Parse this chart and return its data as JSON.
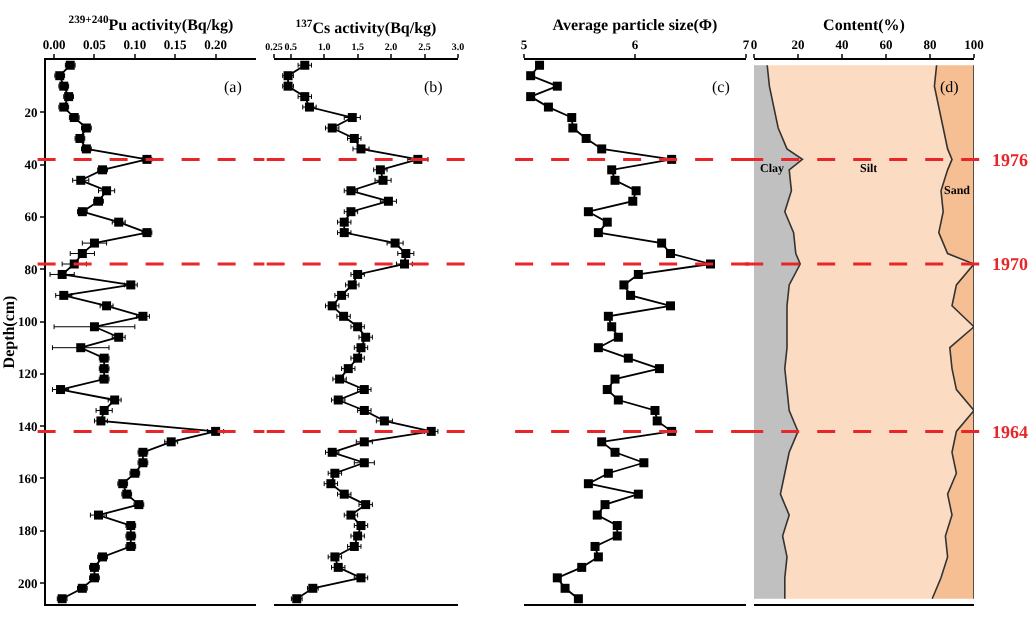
{
  "chart_data": [
    {
      "type": "line",
      "orientation": "horizontal",
      "xlabel": "$^{239+240}$Pu activity(Bq/kg)",
      "ylabel": "Depth(cm)",
      "annotations": [
        "(a)"
      ],
      "marker": "square",
      "line_style": "solid",
      "x": [
        2,
        6,
        10,
        14,
        18,
        22,
        26,
        30,
        34,
        38,
        42,
        46,
        50,
        54,
        58,
        62,
        66,
        70,
        74,
        78,
        82,
        86,
        90,
        94,
        98,
        102,
        106,
        110,
        114,
        118,
        122,
        126,
        130,
        134,
        138,
        142,
        146,
        150,
        154,
        158,
        162,
        166,
        170,
        174,
        178,
        182,
        186,
        190,
        194,
        198,
        202,
        206
      ],
      "series": [
        {
          "color": "#000000",
          "values": [
            0.02,
            0.007,
            0.012,
            0.018,
            0.012,
            0.025,
            0.04,
            0.032,
            0.04,
            0.115,
            0.06,
            0.033,
            0.065,
            0.055,
            0.035,
            0.08,
            0.115,
            0.05,
            0.035,
            0.025,
            0.01,
            0.095,
            0.012,
            0.065,
            0.11,
            0.05,
            0.08,
            0.033,
            0.062,
            0.062,
            0.062,
            0.008,
            0.075,
            0.062,
            0.058,
            0.2,
            0.145,
            0.11,
            0.11,
            0.1,
            0.085,
            0.09,
            0.105,
            0.055,
            0.095,
            0.095,
            0.095,
            0.06,
            0.05,
            0.05,
            0.035,
            0.01
          ],
          "errors": [
            0.006,
            0.006,
            0.006,
            0.006,
            0.006,
            0.006,
            0.006,
            0.006,
            0.006,
            0.006,
            0.006,
            0.01,
            0.01,
            0.006,
            0.006,
            0.008,
            0.006,
            0.015,
            0.015,
            0.015,
            0.015,
            0.008,
            0.01,
            0.008,
            0.008,
            0.05,
            0.008,
            0.035,
            0.006,
            0.006,
            0.006,
            0.01,
            0.008,
            0.01,
            0.008,
            0.01,
            0.008,
            0.006,
            0.006,
            0.006,
            0.006,
            0.006,
            0.006,
            0.01,
            0.006,
            0.006,
            0.006,
            0.006,
            0.006,
            0.006,
            0.006,
            0.006
          ]
        }
      ],
      "xlim": [
        -0.01,
        0.25
      ],
      "xticks": [
        {
          "value": 0,
          "label": "0.00"
        },
        0.05,
        {
          "value": 0.1,
          "label": "0.10"
        },
        0.15,
        {
          "value": 0.2,
          "label": "0.20"
        }
      ],
      "ylim": [
        208,
        0
      ],
      "yticks": [
        20,
        40,
        60,
        80,
        100,
        120,
        140,
        160,
        180,
        200
      ],
      "ref_lines": [
        {
          "axis": "y",
          "value": 38,
          "color": "#e8262a",
          "line_style": "dashed"
        },
        {
          "axis": "y",
          "value": 78,
          "color": "#e8262a",
          "line_style": "dashed"
        },
        {
          "axis": "y",
          "value": 142,
          "color": "#e8262a",
          "line_style": "dashed"
        }
      ]
    },
    {
      "type": "line",
      "orientation": "horizontal",
      "xlabel": "$^{137}$Cs activity(Bq/kg)",
      "annotations": [
        "(b)"
      ],
      "marker": "square",
      "line_style": "solid",
      "tick_labels": "x",
      "x": [
        2,
        6,
        10,
        14,
        18,
        22,
        26,
        30,
        34,
        38,
        42,
        46,
        50,
        54,
        58,
        62,
        66,
        70,
        74,
        78,
        82,
        86,
        90,
        94,
        98,
        102,
        106,
        110,
        114,
        118,
        122,
        126,
        130,
        134,
        138,
        142,
        146,
        150,
        154,
        158,
        162,
        166,
        170,
        174,
        178,
        182,
        186,
        190,
        194,
        198,
        202,
        206
      ],
      "series": [
        {
          "color": "#000000",
          "values": [
            0.71,
            0.46,
            0.46,
            0.71,
            0.78,
            1.42,
            1.12,
            1.45,
            1.55,
            2.4,
            1.84,
            1.88,
            1.4,
            1.96,
            1.4,
            1.3,
            1.3,
            2.06,
            2.22,
            2.2,
            1.5,
            1.42,
            1.26,
            1.12,
            1.29,
            1.5,
            1.62,
            1.55,
            1.5,
            1.36,
            1.23,
            1.6,
            1.21,
            1.6,
            1.9,
            2.6,
            1.6,
            1.12,
            1.6,
            1.16,
            1.1,
            1.3,
            1.62,
            1.4,
            1.55,
            1.5,
            1.45,
            1.16,
            1.21,
            1.55,
            0.83,
            0.59
          ],
          "errors": [
            0.1,
            0.08,
            0.08,
            0.1,
            0.1,
            0.12,
            0.1,
            0.1,
            0.12,
            0.15,
            0.1,
            0.12,
            0.1,
            0.12,
            0.1,
            0.1,
            0.1,
            0.12,
            0.12,
            0.12,
            0.1,
            0.1,
            0.1,
            0.1,
            0.1,
            0.1,
            0.1,
            0.1,
            0.1,
            0.1,
            0.1,
            0.1,
            0.1,
            0.1,
            0.12,
            0.1,
            0.12,
            0.1,
            0.15,
            0.1,
            0.1,
            0.1,
            0.1,
            0.1,
            0.1,
            0.1,
            0.1,
            0.1,
            0.1,
            0.1,
            0.08,
            0.08
          ]
        }
      ],
      "xlim": [
        0.25,
        3.0
      ],
      "xticks": [
        0.25,
        0.5,
        {
          "value": 1,
          "label": "1.0"
        },
        1.5,
        {
          "value": 2,
          "label": "2.0"
        },
        2.5,
        {
          "value": 3,
          "label": "3.0"
        }
      ],
      "ylim": [
        208,
        0
      ],
      "ref_lines": [
        {
          "axis": "y",
          "value": 38,
          "color": "#e8262a",
          "line_style": "dashed"
        },
        {
          "axis": "y",
          "value": 78,
          "color": "#e8262a",
          "line_style": "dashed"
        },
        {
          "axis": "y",
          "value": 142,
          "color": "#e8262a",
          "line_style": "dashed"
        }
      ]
    },
    {
      "type": "line",
      "orientation": "horizontal",
      "xlabel": "Average particle size(Φ)",
      "annotations": [
        "(c)"
      ],
      "marker": "square",
      "line_style": "solid",
      "tick_labels": "x",
      "x": [
        2,
        6,
        10,
        14,
        18,
        22,
        26,
        30,
        34,
        38,
        42,
        46,
        50,
        54,
        58,
        62,
        66,
        70,
        74,
        78,
        82,
        86,
        90,
        94,
        98,
        102,
        106,
        110,
        114,
        118,
        122,
        126,
        130,
        134,
        138,
        142,
        146,
        150,
        154,
        158,
        162,
        166,
        170,
        174,
        178,
        182,
        186,
        190,
        194,
        198,
        202,
        206
      ],
      "series": [
        {
          "color": "#000000",
          "values": [
            5.14,
            5.06,
            5.3,
            5.06,
            5.22,
            5.43,
            5.44,
            5.56,
            5.7,
            6.33,
            5.79,
            5.82,
            6.01,
            5.98,
            5.58,
            5.75,
            5.67,
            6.24,
            6.32,
            6.68,
            6.03,
            5.9,
            5.96,
            6.32,
            5.76,
            5.79,
            5.85,
            5.67,
            5.94,
            6.22,
            5.82,
            5.75,
            5.85,
            6.18,
            6.2,
            6.33,
            5.7,
            5.82,
            6.08,
            5.76,
            5.58,
            6.03,
            5.73,
            5.66,
            5.84,
            5.84,
            5.64,
            5.67,
            5.52,
            5.3,
            5.37,
            5.49
          ]
        }
      ],
      "xlim": [
        5,
        7
      ],
      "xticks": [
        5,
        6,
        7
      ],
      "ylim": [
        208,
        0
      ],
      "ref_lines": [
        {
          "axis": "y",
          "value": 38,
          "color": "#e8262a",
          "line_style": "dashed"
        },
        {
          "axis": "y",
          "value": 78,
          "color": "#e8262a",
          "line_style": "dashed"
        },
        {
          "axis": "y",
          "value": 142,
          "color": "#e8262a",
          "line_style": "dashed"
        }
      ]
    },
    {
      "type": "area",
      "orientation": "horizontal",
      "stacked": true,
      "xlabel": "Content(%)",
      "annotations": [
        "(d)",
        "1976",
        "1970",
        "1964"
      ],
      "tick_labels": "x",
      "x": [
        2,
        10,
        18,
        26,
        34,
        38,
        42,
        50,
        58,
        66,
        74,
        78,
        86,
        94,
        102,
        110,
        118,
        126,
        134,
        142,
        150,
        158,
        166,
        174,
        182,
        190,
        198,
        206
      ],
      "series": [
        {
          "name": "Clay",
          "color": "#c0c0c0",
          "values": [
            6,
            7,
            9,
            11,
            15,
            22,
            16,
            17,
            14,
            18,
            19,
            21,
            16,
            15,
            15,
            15,
            14,
            15,
            16,
            20,
            16,
            14,
            12,
            16,
            13,
            15,
            14,
            14
          ]
        },
        {
          "name": "Silt",
          "color": "#fbdcc2",
          "values": [
            77,
            75,
            75,
            75,
            73,
            68,
            72,
            68,
            72,
            66,
            69,
            79,
            76,
            75,
            85,
            74,
            76,
            77,
            84,
            72,
            74,
            78,
            76,
            74,
            74,
            73,
            71,
            67
          ]
        },
        {
          "name": "Sand",
          "color": "#f5bf93",
          "values": [
            17,
            18,
            16,
            14,
            12,
            10,
            12,
            15,
            14,
            16,
            12,
            0,
            8,
            10,
            0,
            11,
            10,
            8,
            0,
            8,
            10,
            8,
            12,
            10,
            13,
            12,
            15,
            19
          ]
        }
      ],
      "xlim": [
        0,
        100
      ],
      "xticks": [
        0,
        20,
        40,
        60,
        80,
        100
      ],
      "ylim": [
        208,
        0
      ],
      "ref_lines": [
        {
          "axis": "y",
          "value": 38,
          "color": "#e8262a",
          "line_style": "dashed"
        },
        {
          "axis": "y",
          "value": 78,
          "color": "#e8262a",
          "line_style": "dashed"
        },
        {
          "axis": "y",
          "value": 142,
          "color": "#e8262a",
          "line_style": "dashed"
        }
      ]
    }
  ]
}
